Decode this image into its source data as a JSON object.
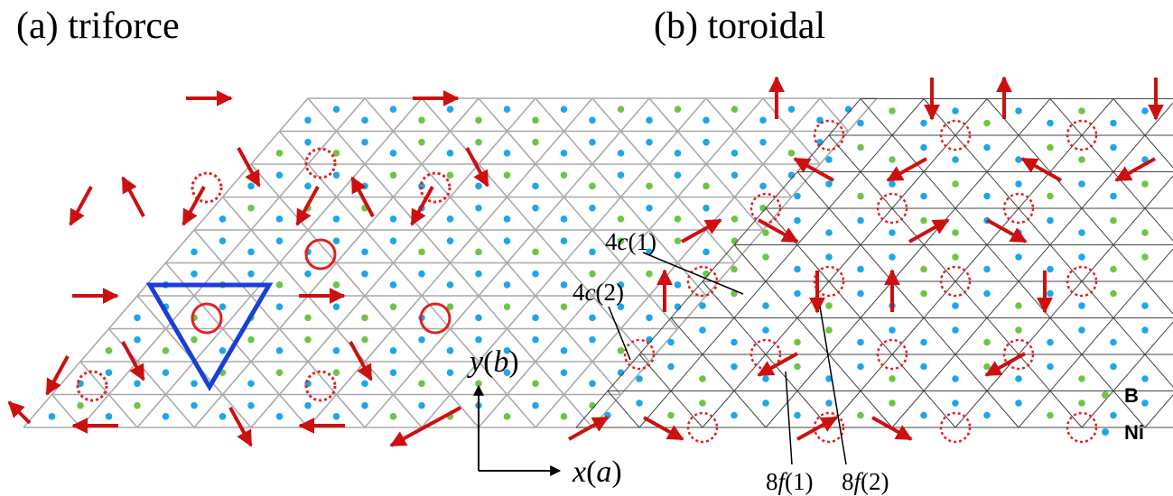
{
  "panels": [
    {
      "title": "(a)  triforce"
    },
    {
      "title": "(b)  toroidal"
    }
  ],
  "site_labels": {
    "c1": {
      "num": "4",
      "letter": "c",
      "idx": "(1)"
    },
    "c2": {
      "num": "4",
      "letter": "c",
      "idx": "(2)"
    },
    "f1": {
      "num": "8",
      "letter": "f",
      "idx": "(1)"
    },
    "f2": {
      "num": "8",
      "letter": "f",
      "idx": "(2)"
    }
  },
  "axes": {
    "y": {
      "letter": "y",
      "paren_open": "(",
      "sub": "b",
      "paren_close": ")"
    },
    "x": {
      "letter": "x",
      "paren_open": "(",
      "sub": "a",
      "paren_close": ")"
    }
  },
  "legend": [
    {
      "label": "B",
      "color": "#6cc644"
    },
    {
      "label": "Ni",
      "color": "#1ea7e8"
    }
  ],
  "colors": {
    "arrow": "#cc1010",
    "circle": "#e02020",
    "triangle": "#1a3fd8",
    "lattice_a": "#aaaaaa",
    "lattice_b": "#444444",
    "ni": "#1ea7e8",
    "b": "#6cc644"
  }
}
